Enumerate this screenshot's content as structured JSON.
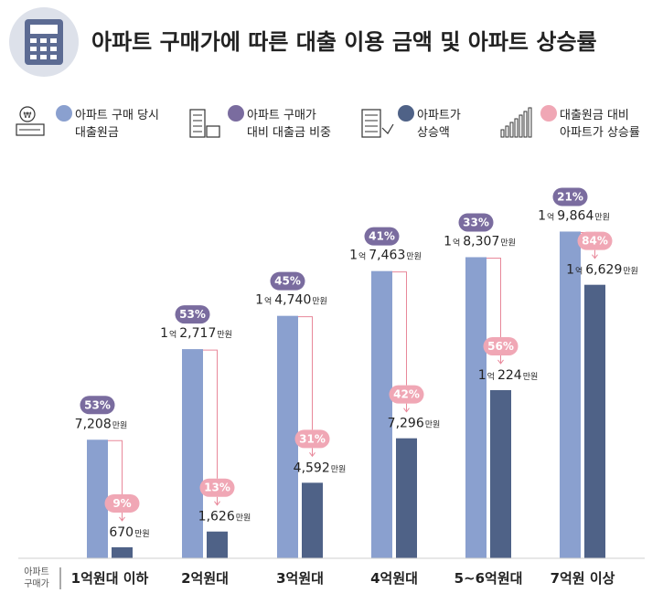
{
  "chart_data": {
    "type": "bar",
    "title": "아파트 구매가에 따른 대출 이용 금액 및 아파트 상승률",
    "axis_caption": [
      "아파트",
      "구매가"
    ],
    "categories": [
      "1억원대 이하",
      "2억원대",
      "3억원대",
      "4억원대",
      "5~6억원대",
      "7억원 이상"
    ],
    "unit": "만원",
    "eok_label": "억",
    "series": [
      {
        "name": "아파트 구매 당시 대출원금",
        "color": "#8aa0cf",
        "values": [
          7208,
          12717,
          14740,
          17463,
          18307,
          19864
        ],
        "labels": [
          {
            "eok": "",
            "man": "7,208"
          },
          {
            "eok": "1",
            "man": "2,717"
          },
          {
            "eok": "1",
            "man": "4,740"
          },
          {
            "eok": "1",
            "man": "7,463"
          },
          {
            "eok": "1",
            "man": "8,307"
          },
          {
            "eok": "1",
            "man": "9,864"
          }
        ]
      },
      {
        "name": "아파트 상승액",
        "color": "#4f6287",
        "values": [
          670,
          1626,
          4592,
          7296,
          10224,
          16629
        ],
        "labels": [
          {
            "eok": "",
            "man": "670"
          },
          {
            "eok": "",
            "man": "1,626"
          },
          {
            "eok": "",
            "man": "4,592"
          },
          {
            "eok": "",
            "man": "7,296"
          },
          {
            "eok": "1",
            "man": "224"
          },
          {
            "eok": "1",
            "man": "6,629"
          }
        ]
      }
    ],
    "loan_ratio_pct": [
      "53%",
      "53%",
      "45%",
      "41%",
      "33%",
      "21%"
    ],
    "rise_ratio_pct": [
      "9%",
      "13%",
      "31%",
      "42%",
      "56%",
      "84%"
    ],
    "legend": [
      {
        "text": [
          "아파트 구매 당시",
          "대출원금"
        ],
        "color": "#8aa0cf",
        "icon": "bankbook-icon"
      },
      {
        "text": [
          "아파트 구매가",
          "대비 대출금 비중"
        ],
        "color": "#7a6c9f",
        "icon": "apartment-house-icon"
      },
      {
        "text": [
          "아파트가",
          "상승액"
        ],
        "color": "#4f6287",
        "icon": "building-rise-icon"
      },
      {
        "text": [
          "대출원금 대비",
          "아파트가 상승률"
        ],
        "color": "#f0a7b5",
        "icon": "bar-growth-icon"
      }
    ],
    "colors": {
      "loan_bar": "#8aa0cf",
      "rise_bar": "#4f6287",
      "loan_badge": "#7a6c9f",
      "rise_badge": "#f0a7b5",
      "connector": "#e8889a",
      "title_icon_circle": "#dde1ea",
      "title_icon": "#5c6b93"
    },
    "title_icon": "calculator-icon",
    "y_max": 20000,
    "legend_position": "top"
  }
}
